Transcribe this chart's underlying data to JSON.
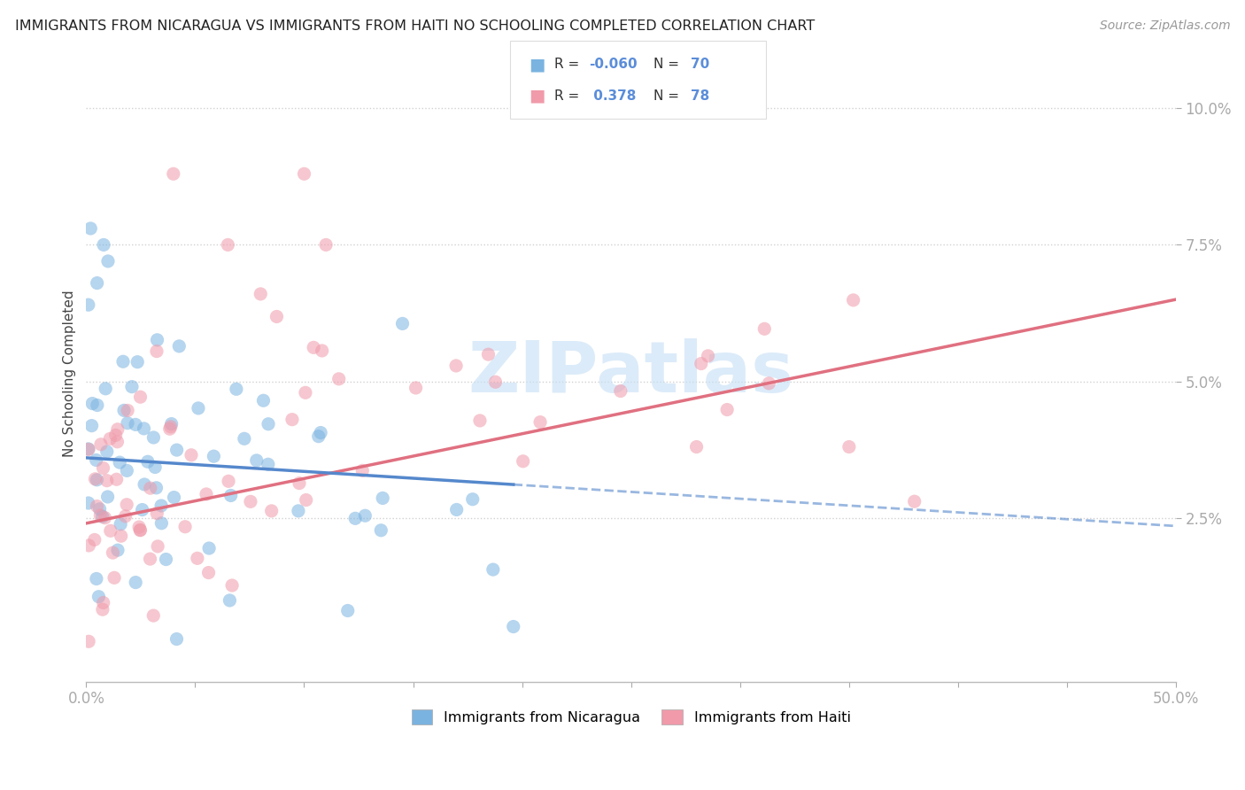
{
  "title": "IMMIGRANTS FROM NICARAGUA VS IMMIGRANTS FROM HAITI NO SCHOOLING COMPLETED CORRELATION CHART",
  "source": "Source: ZipAtlas.com",
  "ylabel": "No Schooling Completed",
  "yticks": [
    "2.5%",
    "5.0%",
    "7.5%",
    "10.0%"
  ],
  "ytick_vals": [
    0.025,
    0.05,
    0.075,
    0.1
  ],
  "xlim": [
    0.0,
    0.5
  ],
  "ylim": [
    -0.005,
    0.108
  ],
  "legend_r_nicaragua": "-0.060",
  "legend_n_nicaragua": "70",
  "legend_r_haiti": "0.378",
  "legend_n_haiti": "78",
  "color_nicaragua": "#7ab3e0",
  "color_haiti": "#f09aaa",
  "color_nic_line": "#5588cc",
  "color_hai_line": "#e07080",
  "color_text_blue": "#5b8dd9",
  "watermark": "ZIPatlas",
  "background_color": "#ffffff",
  "nic_r": -0.06,
  "hai_r": 0.378,
  "nic_n": 70,
  "hai_n": 78
}
